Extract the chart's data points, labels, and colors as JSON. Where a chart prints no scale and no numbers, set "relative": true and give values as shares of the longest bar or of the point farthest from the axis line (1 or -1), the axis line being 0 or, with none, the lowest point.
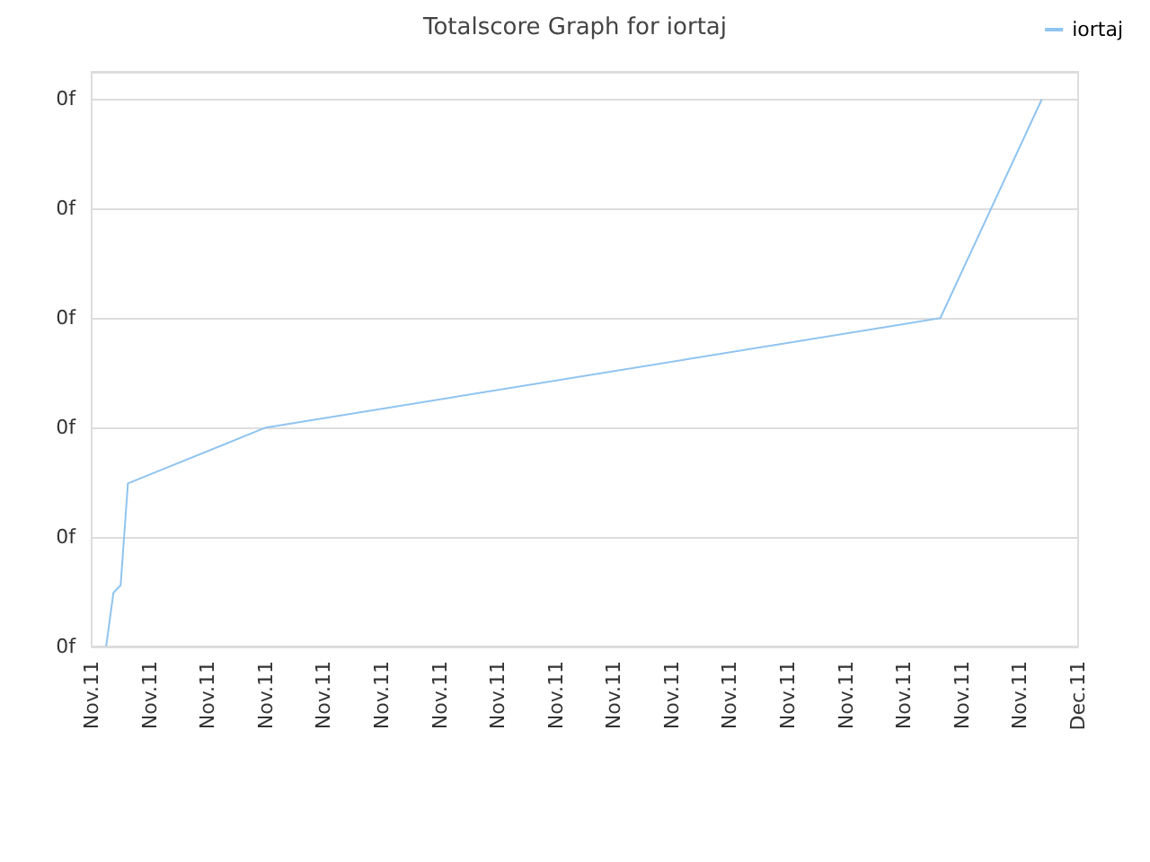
{
  "chart_data": {
    "type": "line",
    "title": "Totalscore Graph for iortaj",
    "legend": "top right",
    "grid": "y",
    "marker": "none",
    "line_style": "solid",
    "relative": true,
    "annotations": [
      "0f",
      "0f",
      "0f",
      "0f",
      "0f",
      "0f"
    ],
    "categories": [
      "Nov.11",
      null,
      null,
      null,
      null,
      null,
      null,
      null,
      "Nov.11",
      null,
      null,
      null,
      null,
      null,
      null,
      null,
      "Nov.11",
      null,
      null,
      null,
      null,
      null,
      null,
      null,
      "Nov.11",
      null,
      null,
      null,
      null,
      null,
      null,
      null,
      "Nov.11",
      null,
      null,
      null,
      null,
      null,
      null,
      null,
      "Nov.11",
      null,
      null,
      null,
      null,
      null,
      null,
      null,
      "Nov.11",
      null,
      null,
      null,
      null,
      null,
      null,
      null,
      "Nov.11",
      null,
      null,
      null,
      null,
      null,
      null,
      null,
      "Nov.11",
      null,
      null,
      null,
      null,
      null,
      null,
      null,
      "Nov.11",
      null,
      null,
      null,
      null,
      null,
      null,
      null,
      "Nov.11",
      null,
      null,
      null,
      null,
      null,
      null,
      null,
      "Nov.11",
      null,
      null,
      null,
      null,
      null,
      null,
      null,
      "Nov.11",
      null,
      null,
      null,
      null,
      null,
      null,
      null,
      "Nov.11",
      null,
      null,
      null,
      null,
      null,
      null,
      null,
      "Nov.11",
      null,
      null,
      null,
      null,
      null,
      null,
      null,
      "Nov.11",
      null,
      null,
      null,
      null,
      null,
      null,
      null,
      "Nov.11",
      null,
      null,
      null,
      null,
      null,
      null,
      null,
      "Dec.11"
    ],
    "series": [
      {
        "name": "iortaj",
        "color": "#90c4f0",
        "values": [
          null,
          null,
          0,
          0.098,
          0.112,
          0.298,
          null,
          null,
          null,
          null,
          null,
          null,
          null,
          null,
          null,
          null,
          null,
          null,
          null,
          null,
          null,
          null,
          null,
          null,
          0.4,
          null,
          null,
          null,
          null,
          null,
          null,
          null,
          null,
          null,
          null,
          null,
          null,
          null,
          null,
          null,
          null,
          null,
          null,
          null,
          null,
          null,
          null,
          null,
          null,
          null,
          null,
          null,
          null,
          null,
          null,
          null,
          null,
          null,
          null,
          null,
          null,
          null,
          null,
          null,
          null,
          null,
          null,
          null,
          null,
          null,
          null,
          null,
          null,
          null,
          null,
          null,
          null,
          null,
          null,
          null,
          null,
          null,
          null,
          null,
          null,
          null,
          null,
          null,
          null,
          null,
          null,
          null,
          null,
          null,
          null,
          null,
          null,
          null,
          null,
          null,
          null,
          null,
          null,
          null,
          null,
          null,
          null,
          null,
          null,
          null,
          null,
          null,
          null,
          null,
          null,
          null,
          null,
          0.6,
          null,
          null,
          null,
          null,
          null,
          null,
          null,
          null,
          null,
          null,
          null,
          null,
          null,
          1,
          null,
          null,
          null,
          null,
          null
        ]
      }
    ]
  }
}
